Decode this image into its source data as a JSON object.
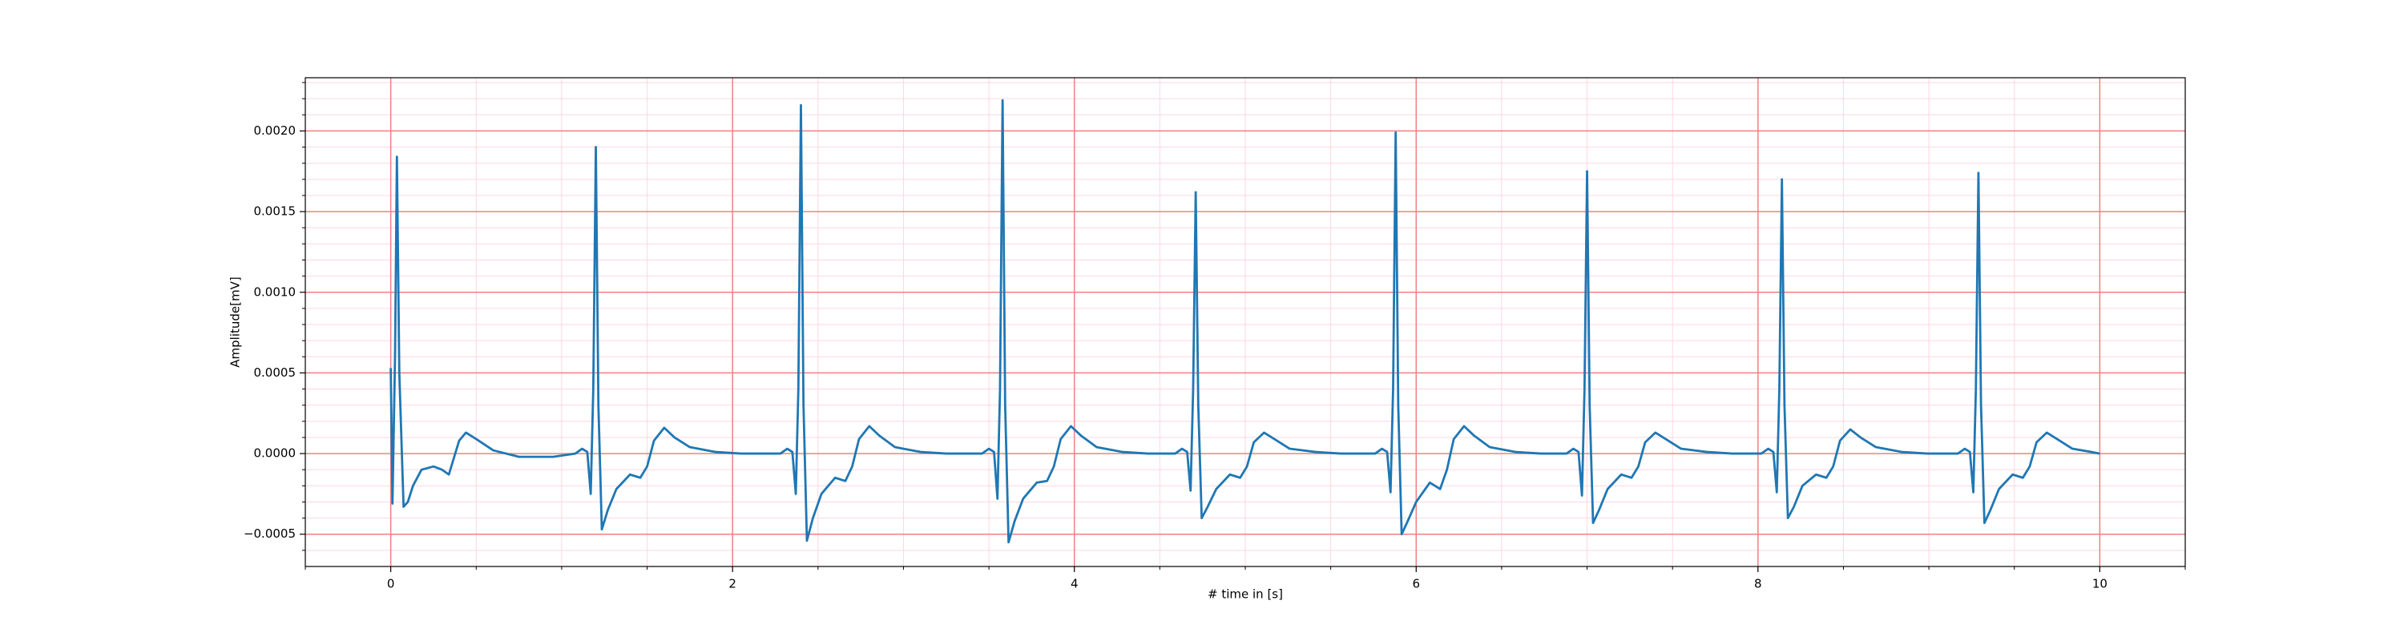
{
  "chart_data": {
    "type": "line",
    "xlabel": "# time in [s]",
    "ylabel": "Amplitude[mV]",
    "color": "#1f77b4",
    "grid": true,
    "grid_color": "#f08080",
    "minor_grid": true,
    "minor_grid_color": "#ffd6e0",
    "xlim": [
      -0.5,
      10.5
    ],
    "xticks": [
      0,
      2,
      4,
      6,
      8,
      10
    ],
    "xminorticks": [
      -0.5,
      0.5,
      1,
      1.5,
      2.5,
      3,
      3.5,
      4.5,
      5,
      5.5,
      6.5,
      7,
      7.5,
      8.5,
      9,
      9.5,
      10.5
    ],
    "ylim": [
      -0.0007,
      0.00233
    ],
    "yticks": [
      {
        "value": -0.0005,
        "label": "−0.0005"
      },
      {
        "value": 0,
        "label": "0.0000"
      },
      {
        "value": 0.0005,
        "label": "0.0005"
      },
      {
        "value": 0.001,
        "label": "0.0010"
      },
      {
        "value": 0.0015,
        "label": "0.0015"
      },
      {
        "value": 0.002,
        "label": "0.0020"
      }
    ],
    "yminorticks": [
      -0.0006,
      -0.0004,
      -0.0003,
      -0.0002,
      -0.0001,
      0.0001,
      0.0002,
      0.0003,
      0.0004,
      0.0006,
      0.0007,
      0.0008,
      0.0009,
      0.0011,
      0.0012,
      0.0013,
      0.0014,
      0.0016,
      0.0017,
      0.0018,
      0.0019,
      0.0021,
      0.0022,
      0.0023
    ],
    "x": [
      0,
      0.01,
      0.025,
      0.036,
      0.05,
      0.075,
      0.1,
      0.13,
      0.18,
      0.25,
      0.3,
      0.34,
      0.4,
      0.44,
      0.5,
      0.6,
      0.75,
      0.95,
      1.08,
      1.12,
      1.15,
      1.17,
      1.185,
      1.2,
      1.215,
      1.235,
      1.27,
      1.32,
      1.4,
      1.46,
      1.5,
      1.54,
      1.6,
      1.66,
      1.75,
      1.9,
      2.05,
      2.28,
      2.32,
      2.35,
      2.37,
      2.385,
      2.4,
      2.415,
      2.435,
      2.47,
      2.52,
      2.6,
      2.66,
      2.7,
      2.74,
      2.8,
      2.86,
      2.95,
      3.1,
      3.25,
      3.46,
      3.5,
      3.53,
      3.55,
      3.565,
      3.58,
      3.595,
      3.615,
      3.65,
      3.7,
      3.78,
      3.84,
      3.88,
      3.92,
      3.98,
      4.04,
      4.13,
      4.28,
      4.43,
      4.59,
      4.63,
      4.66,
      4.68,
      4.695,
      4.71,
      4.725,
      4.745,
      4.78,
      4.83,
      4.91,
      4.97,
      5.01,
      5.05,
      5.11,
      5.17,
      5.26,
      5.41,
      5.56,
      5.76,
      5.8,
      5.83,
      5.85,
      5.865,
      5.88,
      5.895,
      5.915,
      5.95,
      6.0,
      6.08,
      6.14,
      6.18,
      6.22,
      6.28,
      6.34,
      6.43,
      6.58,
      6.73,
      6.88,
      6.92,
      6.95,
      6.97,
      6.985,
      7.0,
      7.015,
      7.035,
      7.07,
      7.12,
      7.2,
      7.26,
      7.3,
      7.34,
      7.4,
      7.46,
      7.55,
      7.7,
      7.85,
      8.02,
      8.06,
      8.09,
      8.11,
      8.125,
      8.14,
      8.155,
      8.175,
      8.21,
      8.26,
      8.34,
      8.4,
      8.44,
      8.48,
      8.54,
      8.6,
      8.69,
      8.84,
      8.99,
      9.17,
      9.21,
      9.24,
      9.26,
      9.275,
      9.29,
      9.305,
      9.325,
      9.36,
      9.41,
      9.49,
      9.55,
      9.59,
      9.63,
      9.69,
      9.75,
      9.84,
      9.95,
      10.0
    ],
    "values": [
      0.00053,
      -0.00031,
      0.0006,
      0.00184,
      0.0005,
      -0.00033,
      -0.0003,
      -0.0002,
      -0.0001,
      -8e-05,
      -0.0001,
      -0.00013,
      8e-05,
      0.00013,
      9e-05,
      2e-05,
      -2e-05,
      -2e-05,
      0,
      3e-05,
      1e-05,
      -0.00025,
      0.0004,
      0.0019,
      0.0003,
      -0.00047,
      -0.00035,
      -0.00022,
      -0.00013,
      -0.00015,
      -8e-05,
      8e-05,
      0.00016,
      0.0001,
      4e-05,
      1e-05,
      0,
      0,
      3e-05,
      1e-05,
      -0.00025,
      0.0004,
      0.00216,
      0.0003,
      -0.00054,
      -0.0004,
      -0.00025,
      -0.00015,
      -0.00017,
      -8e-05,
      9e-05,
      0.00017,
      0.00011,
      4e-05,
      1e-05,
      0,
      0,
      3e-05,
      1e-05,
      -0.00028,
      0.0004,
      0.00219,
      0.0003,
      -0.00055,
      -0.00042,
      -0.00028,
      -0.00018,
      -0.00017,
      -8e-05,
      9e-05,
      0.00017,
      0.00011,
      4e-05,
      1e-05,
      0,
      0,
      3e-05,
      1e-05,
      -0.00023,
      0.0004,
      0.00162,
      0.0003,
      -0.0004,
      -0.00033,
      -0.00022,
      -0.00013,
      -0.00015,
      -8e-05,
      7e-05,
      0.00013,
      9e-05,
      3e-05,
      1e-05,
      0,
      0,
      3e-05,
      1e-05,
      -0.00024,
      0.0004,
      0.00199,
      0.0003,
      -0.0005,
      -0.00042,
      -0.0003,
      -0.00018,
      -0.00022,
      -0.0001,
      9e-05,
      0.00017,
      0.00011,
      4e-05,
      1e-05,
      0,
      0,
      3e-05,
      1e-05,
      -0.00026,
      0.0004,
      0.00175,
      0.0003,
      -0.00043,
      -0.00035,
      -0.00022,
      -0.00013,
      -0.00015,
      -8e-05,
      7e-05,
      0.00013,
      9e-05,
      3e-05,
      1e-05,
      0,
      0,
      3e-05,
      1e-05,
      -0.00024,
      0.0004,
      0.0017,
      0.0003,
      -0.0004,
      -0.00033,
      -0.0002,
      -0.00013,
      -0.00015,
      -8e-05,
      8e-05,
      0.00015,
      0.0001,
      4e-05,
      1e-05,
      0,
      0,
      3e-05,
      1e-05,
      -0.00024,
      0.0004,
      0.00174,
      0.0003,
      -0.00043,
      -0.00035,
      -0.00022,
      -0.00013,
      -0.00015,
      -8e-05,
      7e-05,
      0.00013,
      9e-05,
      3e-05,
      1e-05,
      0
    ]
  }
}
